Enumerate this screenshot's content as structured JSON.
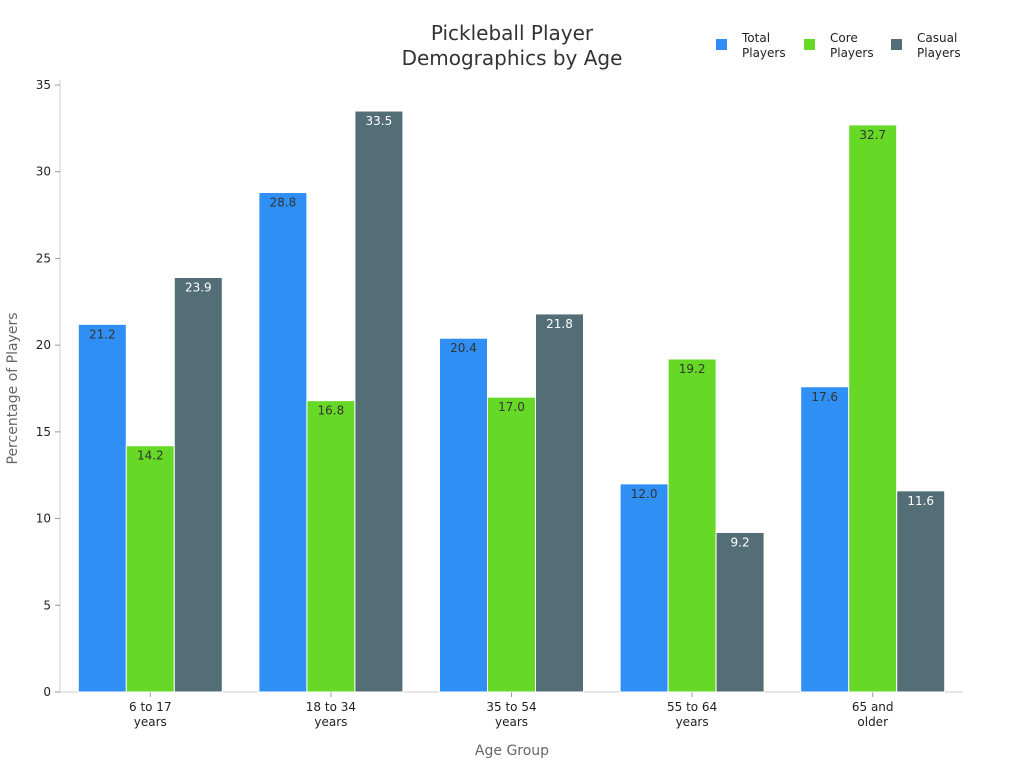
{
  "chart_data": {
    "type": "bar",
    "title": [
      "Pickleball Player",
      "Demographics by Age"
    ],
    "xlabel": "Age Group",
    "ylabel": "Percentage of Players",
    "ylim": [
      0,
      35
    ],
    "yticks": [
      0,
      5,
      10,
      15,
      20,
      25,
      30,
      35
    ],
    "grid": false,
    "legend_position": "top-right",
    "categories": [
      [
        "6 to 17",
        "years"
      ],
      [
        "18 to 34",
        "years"
      ],
      [
        "35 to 54",
        "years"
      ],
      [
        "55 to 64",
        "years"
      ],
      [
        "65 and",
        "older"
      ]
    ],
    "series": [
      {
        "name": [
          "Total",
          "Players"
        ],
        "color": "#2f8ff5",
        "label_color": "#333333",
        "values": [
          21.2,
          28.8,
          20.4,
          12.0,
          17.6
        ]
      },
      {
        "name": [
          "Core",
          "Players"
        ],
        "color": "#66d926",
        "label_color": "#333333",
        "values": [
          14.2,
          16.8,
          17.0,
          19.2,
          32.7
        ]
      },
      {
        "name": [
          "Casual",
          "Players"
        ],
        "color": "#546e78",
        "label_color": "#ffffff",
        "values": [
          23.9,
          33.5,
          21.8,
          9.2,
          11.6
        ]
      }
    ]
  }
}
